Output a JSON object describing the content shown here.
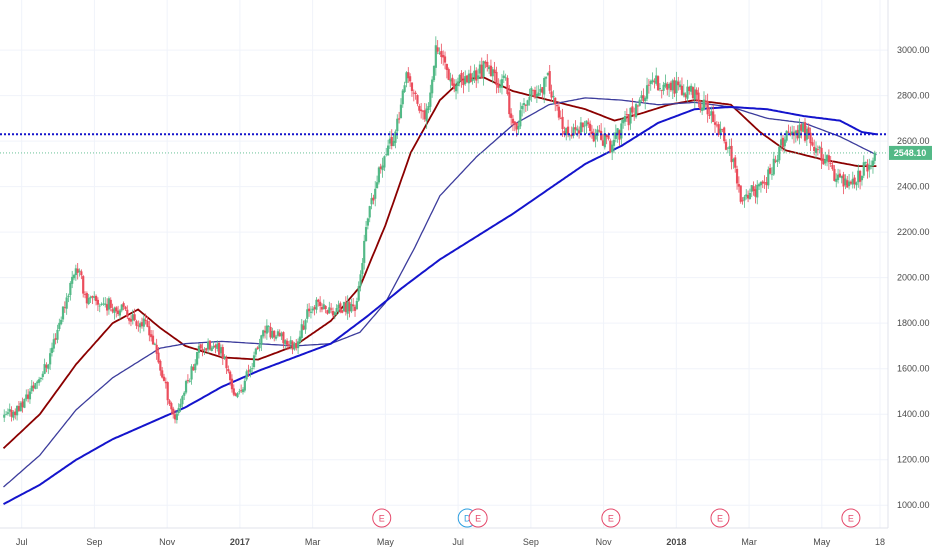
{
  "chart_data": {
    "type": "candlestick",
    "x_ticks": [
      {
        "label": "Jul",
        "t": 0.5
      },
      {
        "label": "Sep",
        "t": 2.5
      },
      {
        "label": "Nov",
        "t": 4.5
      },
      {
        "label": "2017",
        "t": 6.5,
        "bold": true
      },
      {
        "label": "Mar",
        "t": 8.5
      },
      {
        "label": "May",
        "t": 10.5
      },
      {
        "label": "Jul",
        "t": 12.5
      },
      {
        "label": "Sep",
        "t": 14.5
      },
      {
        "label": "Nov",
        "t": 16.5
      },
      {
        "label": "2018",
        "t": 18.5,
        "bold": true
      },
      {
        "label": "Mar",
        "t": 20.5
      },
      {
        "label": "May",
        "t": 22.5
      },
      {
        "label": "18",
        "t": 24.1
      }
    ],
    "y_ticks": [
      1000,
      1200,
      1400,
      1600,
      1800,
      2000,
      2200,
      2400,
      2600,
      2800,
      3000
    ],
    "ylim": [
      900,
      3220
    ],
    "xlim": [
      0,
      24.1
    ],
    "grid": true,
    "colors": {
      "up": "#53b987",
      "down": "#eb4d5c",
      "ma_fast": "#8b0000",
      "ma_mid": "#3c3c9c",
      "ma_slow": "#1414cc",
      "resistance": "#1414cc",
      "last_price": "#53b987",
      "earnings": "#e5496b",
      "dividend": "#2c9fe0"
    },
    "price_path": [
      [
        0,
        1380
      ],
      [
        0.5,
        1440
      ],
      [
        1.2,
        1620
      ],
      [
        2.0,
        2060
      ],
      [
        2.3,
        1900
      ],
      [
        3.0,
        1880
      ],
      [
        4.0,
        1780
      ],
      [
        4.7,
        1380
      ],
      [
        5.4,
        1700
      ],
      [
        6.0,
        1680
      ],
      [
        6.4,
        1460
      ],
      [
        7.2,
        1770
      ],
      [
        8.0,
        1700
      ],
      [
        8.5,
        1890
      ],
      [
        9.0,
        1850
      ],
      [
        9.7,
        1880
      ],
      [
        10.0,
        2240
      ],
      [
        10.5,
        2570
      ],
      [
        10.7,
        2600
      ],
      [
        11.1,
        2880
      ],
      [
        11.6,
        2680
      ],
      [
        11.9,
        3040
      ],
      [
        12.4,
        2840
      ],
      [
        13.2,
        2920
      ],
      [
        13.8,
        2850
      ],
      [
        14.0,
        2640
      ],
      [
        14.4,
        2780
      ],
      [
        15.0,
        2870
      ],
      [
        15.4,
        2620
      ],
      [
        16.0,
        2660
      ],
      [
        16.7,
        2580
      ],
      [
        17.4,
        2760
      ],
      [
        17.9,
        2860
      ],
      [
        18.3,
        2840
      ],
      [
        18.9,
        2810
      ],
      [
        19.4,
        2720
      ],
      [
        20.0,
        2550
      ],
      [
        20.3,
        2330
      ],
      [
        21.0,
        2440
      ],
      [
        21.5,
        2620
      ],
      [
        22.0,
        2640
      ],
      [
        22.6,
        2520
      ],
      [
        23.0,
        2420
      ],
      [
        23.5,
        2440
      ],
      [
        24.0,
        2548
      ]
    ],
    "series": [
      {
        "key": "ma_fast",
        "points": [
          [
            0,
            1250
          ],
          [
            1,
            1400
          ],
          [
            2,
            1620
          ],
          [
            3,
            1800
          ],
          [
            3.7,
            1860
          ],
          [
            4.3,
            1780
          ],
          [
            5.0,
            1700
          ],
          [
            6.0,
            1650
          ],
          [
            7.0,
            1640
          ],
          [
            8.0,
            1700
          ],
          [
            9.0,
            1810
          ],
          [
            9.8,
            1960
          ],
          [
            10.5,
            2230
          ],
          [
            11.2,
            2550
          ],
          [
            12.0,
            2780
          ],
          [
            12.6,
            2870
          ],
          [
            13.2,
            2880
          ],
          [
            14.0,
            2820
          ],
          [
            15.0,
            2780
          ],
          [
            16.0,
            2740
          ],
          [
            16.8,
            2690
          ],
          [
            17.5,
            2720
          ],
          [
            18.3,
            2760
          ],
          [
            19.0,
            2780
          ],
          [
            20.0,
            2760
          ],
          [
            20.8,
            2640
          ],
          [
            21.5,
            2560
          ],
          [
            22.5,
            2520
          ],
          [
            23.5,
            2490
          ],
          [
            24.0,
            2490
          ]
        ]
      },
      {
        "key": "ma_mid",
        "points": [
          [
            0,
            1080
          ],
          [
            1,
            1220
          ],
          [
            2,
            1420
          ],
          [
            3,
            1560
          ],
          [
            4.3,
            1690
          ],
          [
            5,
            1710
          ],
          [
            6,
            1720
          ],
          [
            7,
            1710
          ],
          [
            8,
            1700
          ],
          [
            9,
            1710
          ],
          [
            9.8,
            1760
          ],
          [
            10.5,
            1890
          ],
          [
            11.3,
            2130
          ],
          [
            12.0,
            2360
          ],
          [
            13.0,
            2530
          ],
          [
            14.0,
            2670
          ],
          [
            15.0,
            2760
          ],
          [
            16.0,
            2790
          ],
          [
            17.0,
            2780
          ],
          [
            18.0,
            2760
          ],
          [
            19.0,
            2770
          ],
          [
            20.0,
            2750
          ],
          [
            21.0,
            2700
          ],
          [
            22.0,
            2680
          ],
          [
            23.0,
            2620
          ],
          [
            24.0,
            2540
          ]
        ]
      },
      {
        "key": "ma_slow",
        "points": [
          [
            0,
            1005
          ],
          [
            1,
            1090
          ],
          [
            2,
            1200
          ],
          [
            3,
            1290
          ],
          [
            4,
            1360
          ],
          [
            5,
            1430
          ],
          [
            6,
            1520
          ],
          [
            7,
            1590
          ],
          [
            8,
            1650
          ],
          [
            9,
            1710
          ],
          [
            10,
            1830
          ],
          [
            11,
            1960
          ],
          [
            12,
            2080
          ],
          [
            13,
            2180
          ],
          [
            14,
            2280
          ],
          [
            15,
            2390
          ],
          [
            16,
            2500
          ],
          [
            17,
            2580
          ],
          [
            18,
            2680
          ],
          [
            19,
            2740
          ],
          [
            20,
            2750
          ],
          [
            21,
            2740
          ],
          [
            22,
            2710
          ],
          [
            23,
            2690
          ],
          [
            23.6,
            2640
          ],
          [
            24.0,
            2630
          ]
        ]
      }
    ],
    "resistance_level": 2630,
    "last_price": {
      "value": 2548.1,
      "label": "2548.10"
    },
    "events": [
      {
        "type": "earnings",
        "label": "E",
        "t": 10.4
      },
      {
        "type": "dividend",
        "label": "D",
        "t": 12.75
      },
      {
        "type": "earnings",
        "label": "E",
        "t": 13.05
      },
      {
        "type": "earnings",
        "label": "E",
        "t": 16.7
      },
      {
        "type": "earnings",
        "label": "E",
        "t": 19.7
      },
      {
        "type": "earnings",
        "label": "E",
        "t": 23.3
      }
    ]
  }
}
